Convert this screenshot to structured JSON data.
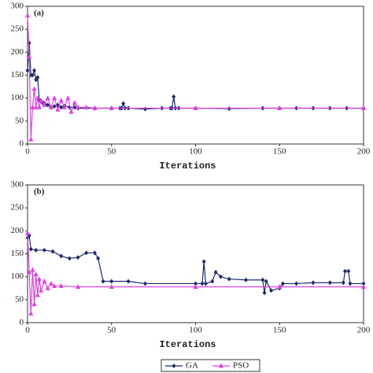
{
  "chart_data": [
    {
      "type": "line",
      "label": "(a)",
      "x_label": "Iterations",
      "xlim": [
        0,
        200
      ],
      "xticks": [
        0,
        50,
        100,
        150,
        200
      ],
      "ylim": [
        0,
        300
      ],
      "yticks": [
        0,
        50,
        100,
        150,
        200,
        250,
        300
      ],
      "series": [
        {
          "color": "#1c2a6e",
          "marker": "diamond",
          "x": [
            0,
            1,
            2,
            3,
            4,
            5,
            6,
            7,
            8,
            9,
            10,
            12,
            14,
            16,
            18,
            20,
            22,
            25,
            28,
            30,
            40,
            50,
            55,
            56,
            57,
            58,
            60,
            70,
            80,
            85,
            86,
            87,
            88,
            90,
            100,
            120,
            140,
            150,
            160,
            170,
            180,
            190,
            200
          ],
          "values": [
            160,
            220,
            150,
            150,
            160,
            140,
            145,
            95,
            95,
            90,
            88,
            85,
            80,
            82,
            85,
            80,
            83,
            80,
            80,
            78,
            78,
            78,
            78,
            78,
            88,
            78,
            78,
            76,
            78,
            78,
            78,
            103,
            78,
            78,
            78,
            77,
            78,
            78,
            78,
            78,
            78,
            78,
            78
          ]
        },
        {
          "color": "#e040e0",
          "marker": "triangle",
          "x": [
            0,
            1,
            2,
            3,
            4,
            5,
            6,
            7,
            8,
            10,
            12,
            14,
            16,
            18,
            20,
            22,
            24,
            26,
            28,
            30,
            35,
            40,
            50,
            100,
            150,
            200
          ],
          "values": [
            280,
            190,
            10,
            80,
            120,
            80,
            100,
            80,
            95,
            85,
            100,
            80,
            100,
            75,
            95,
            80,
            100,
            70,
            90,
            80,
            80,
            78,
            78,
            78,
            78,
            78
          ]
        }
      ]
    },
    {
      "type": "line",
      "label": "(b)",
      "x_label": "Iterations",
      "xlim": [
        0,
        200
      ],
      "xticks": [
        0,
        50,
        100,
        150,
        200
      ],
      "ylim": [
        0,
        300
      ],
      "yticks": [
        0,
        50,
        100,
        150,
        200,
        250,
        300
      ],
      "series": [
        {
          "name": "GA",
          "color": "#1c2a6e",
          "marker": "diamond",
          "x": [
            0,
            1,
            2,
            5,
            10,
            15,
            20,
            25,
            30,
            35,
            40,
            42,
            45,
            50,
            60,
            70,
            100,
            104,
            105,
            106,
            110,
            112,
            115,
            120,
            130,
            140,
            141,
            142,
            145,
            150,
            152,
            160,
            170,
            180,
            188,
            189,
            191,
            192,
            200
          ],
          "values": [
            185,
            190,
            160,
            158,
            158,
            155,
            145,
            140,
            142,
            152,
            152,
            140,
            90,
            90,
            90,
            85,
            85,
            85,
            133,
            85,
            90,
            110,
            100,
            95,
            93,
            93,
            65,
            90,
            70,
            75,
            85,
            85,
            87,
            87,
            87,
            112,
            112,
            85,
            85
          ]
        },
        {
          "name": "PSO",
          "color": "#e040e0",
          "marker": "triangle",
          "x": [
            0,
            1,
            2,
            3,
            4,
            5,
            6,
            7,
            8,
            10,
            12,
            14,
            16,
            20,
            30,
            50,
            100,
            150,
            200
          ],
          "values": [
            195,
            110,
            20,
            115,
            40,
            105,
            60,
            95,
            70,
            90,
            75,
            85,
            80,
            80,
            78,
            78,
            78,
            78,
            78
          ]
        }
      ]
    }
  ]
}
